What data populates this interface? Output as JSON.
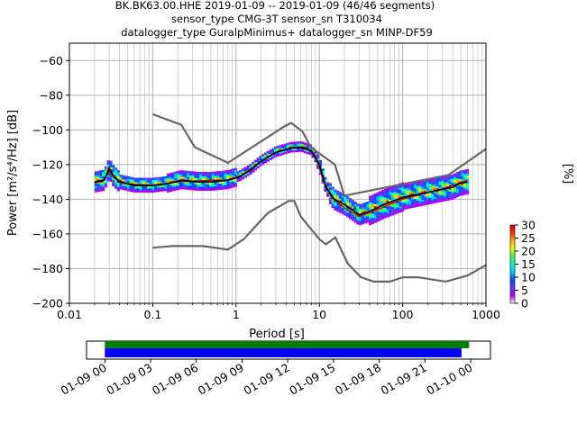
{
  "title_lines": [
    "BK.BK63.00.HHE   2019-01-09 -- 2019-01-09  (46/46 segments)",
    "sensor_type CMG-3T sensor_sn T310034",
    "datalogger_type GuralpMinimus+ datalogger_sn MINP-DF59"
  ],
  "chart_data": {
    "type": "heatmap",
    "xlabel": "Period [s]",
    "ylabel": "Power [m²/s⁴/Hz] [dB]",
    "xscale": "log",
    "xlim": [
      0.01,
      1000
    ],
    "ylim": [
      -200,
      -50
    ],
    "x_ticks": [
      0.01,
      0.1,
      1,
      10,
      100,
      1000
    ],
    "x_tick_labels": [
      "0.01",
      "0.1",
      "1",
      "10",
      "100",
      "1000"
    ],
    "y_ticks": [
      -200,
      -180,
      -160,
      -140,
      -120,
      -100,
      -80,
      -60
    ],
    "y_tick_labels": [
      "−200",
      "−180",
      "−160",
      "−140",
      "−120",
      "−100",
      "−80",
      "−60"
    ],
    "grid": true,
    "noise_model_high": [
      [
        0.1,
        -91
      ],
      [
        0.22,
        -97
      ],
      [
        0.32,
        -110
      ],
      [
        0.8,
        -119
      ],
      [
        3.8,
        -98
      ],
      [
        4.6,
        -96
      ],
      [
        6.3,
        -101
      ],
      [
        7.9,
        -110
      ],
      [
        15.4,
        -120
      ],
      [
        20,
        -138
      ],
      [
        354.8,
        -126
      ],
      [
        1000,
        -111
      ]
    ],
    "noise_model_low": [
      [
        0.1,
        -168
      ],
      [
        0.17,
        -167
      ],
      [
        0.4,
        -167
      ],
      [
        0.8,
        -169
      ],
      [
        1.24,
        -163
      ],
      [
        2.4,
        -148
      ],
      [
        4.3,
        -141
      ],
      [
        5,
        -141
      ],
      [
        6,
        -150
      ],
      [
        10,
        -163
      ],
      [
        12,
        -166
      ],
      [
        15.6,
        -162
      ],
      [
        21.9,
        -177
      ],
      [
        31.6,
        -185
      ],
      [
        45,
        -187.5
      ],
      [
        70,
        -187.5
      ],
      [
        101,
        -185
      ],
      [
        154,
        -185
      ],
      [
        328,
        -187.5
      ],
      [
        600,
        -184
      ],
      [
        1000,
        -178
      ]
    ],
    "mean_curve": [
      [
        0.02,
        -130
      ],
      [
        0.026,
        -129
      ],
      [
        0.028,
        -126
      ],
      [
        0.03,
        -122
      ],
      [
        0.033,
        -126
      ],
      [
        0.04,
        -130
      ],
      [
        0.06,
        -132
      ],
      [
        0.1,
        -132
      ],
      [
        0.15,
        -131
      ],
      [
        0.22,
        -129
      ],
      [
        0.35,
        -130
      ],
      [
        0.5,
        -130
      ],
      [
        0.8,
        -129
      ],
      [
        1.1,
        -127
      ],
      [
        1.5,
        -123
      ],
      [
        2,
        -118
      ],
      [
        3,
        -113
      ],
      [
        4.5,
        -110.5
      ],
      [
        6,
        -110
      ],
      [
        8,
        -112
      ],
      [
        10,
        -120
      ],
      [
        12,
        -133
      ],
      [
        15,
        -140
      ],
      [
        20,
        -143
      ],
      [
        30,
        -149
      ],
      [
        40,
        -147
      ],
      [
        60,
        -143
      ],
      [
        100,
        -139
      ],
      [
        200,
        -136
      ],
      [
        400,
        -133
      ],
      [
        480,
        -131
      ],
      [
        600,
        -130
      ]
    ],
    "mode_curve": [
      [
        0.02,
        -130
      ],
      [
        0.025,
        -130
      ],
      [
        0.03,
        -124
      ],
      [
        0.035,
        -128
      ],
      [
        0.05,
        -131
      ],
      [
        0.1,
        -132
      ],
      [
        0.2,
        -130
      ],
      [
        0.5,
        -129
      ],
      [
        0.8,
        -129
      ],
      [
        1.2,
        -126
      ],
      [
        2,
        -118
      ],
      [
        3,
        -113
      ],
      [
        5,
        -110
      ],
      [
        7,
        -110
      ],
      [
        9,
        -115
      ],
      [
        11,
        -128
      ],
      [
        14,
        -139
      ],
      [
        20,
        -145
      ],
      [
        30,
        -150
      ],
      [
        50,
        -146
      ],
      [
        100,
        -140
      ],
      [
        300,
        -134
      ],
      [
        600,
        -129
      ]
    ],
    "colorbar": {
      "label": "[%]",
      "ticks": [
        0,
        5,
        10,
        15,
        20,
        25,
        30
      ],
      "range": [
        0,
        30
      ],
      "colors": [
        "#ffffff",
        "#b200ff",
        "#5a3cff",
        "#0050ff",
        "#00c8ff",
        "#00ffd0",
        "#3cff3c",
        "#e6ff00",
        "#ffb000",
        "#ff3000",
        "#cc0000"
      ]
    },
    "timeline": {
      "tick_labels": [
        "01-09 00",
        "01-09 03",
        "01-09 06",
        "01-09 09",
        "01-09 12",
        "01-09 15",
        "01-09 18",
        "01-09 21",
        "01-10 00"
      ],
      "tick_hours": [
        0,
        3,
        6,
        9,
        12,
        15,
        18,
        21,
        24
      ],
      "data_bar": {
        "start_h": 0,
        "end_h": 23.9,
        "color": "#008000"
      },
      "psd_bar": {
        "start_h": 0,
        "end_h": 23.4,
        "color": "#0000ff"
      },
      "xlim_h": [
        -1.2,
        25.3
      ]
    }
  }
}
